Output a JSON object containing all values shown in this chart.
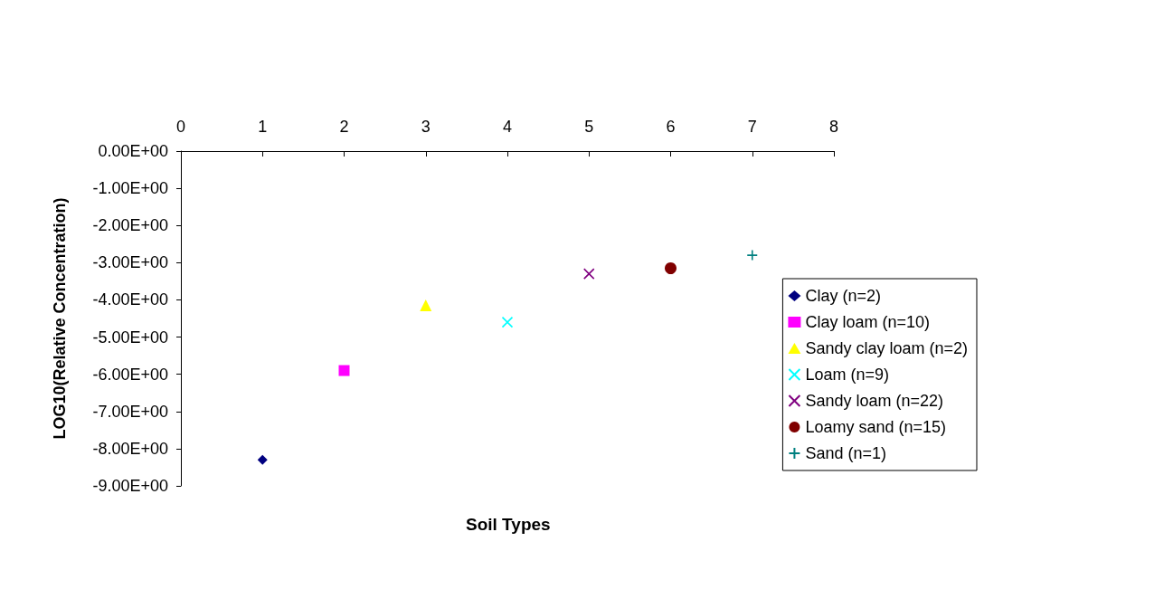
{
  "chart_data": {
    "type": "scatter",
    "xlabel": "Soil Types",
    "ylabel": "LOG10(Relative Concentration)",
    "xlim": [
      0,
      8
    ],
    "xticks": [
      0,
      1,
      2,
      3,
      4,
      5,
      6,
      7,
      8
    ],
    "ylim": [
      -9,
      0
    ],
    "yticks": [
      {
        "value": 0,
        "label": "0.00E+00"
      },
      {
        "value": -1,
        "label": "-1.00E+00"
      },
      {
        "value": -2,
        "label": "-2.00E+00"
      },
      {
        "value": -3,
        "label": "-3.00E+00"
      },
      {
        "value": -4,
        "label": "-4.00E+00"
      },
      {
        "value": -5,
        "label": "-5.00E+00"
      },
      {
        "value": -6,
        "label": "-6.00E+00"
      },
      {
        "value": -7,
        "label": "-7.00E+00"
      },
      {
        "value": -8,
        "label": "-8.00E+00"
      },
      {
        "value": -9,
        "label": "-9.00E+00"
      }
    ],
    "grid": false,
    "legend": "right",
    "series": [
      {
        "name": "Clay (n=2)",
        "color": "#000080",
        "marker": "diamond",
        "x": [
          1
        ],
        "values": [
          -8.3
        ]
      },
      {
        "name": "Clay loam (n=10)",
        "color": "#ff00ff",
        "marker": "square",
        "x": [
          2
        ],
        "values": [
          -5.9
        ]
      },
      {
        "name": "Sandy clay loam (n=2)",
        "color": "#ffff00",
        "marker": "triangle",
        "x": [
          3
        ],
        "values": [
          -4.15
        ]
      },
      {
        "name": "Loam (n=9)",
        "color": "#00ffff",
        "marker": "cross",
        "x": [
          4
        ],
        "values": [
          -4.6
        ]
      },
      {
        "name": "Sandy loam (n=22)",
        "color": "#800080",
        "marker": "cross",
        "x": [
          5
        ],
        "values": [
          -3.3
        ]
      },
      {
        "name": "Loamy sand (n=15)",
        "color": "#800000",
        "marker": "circle",
        "x": [
          6
        ],
        "values": [
          -3.15
        ]
      },
      {
        "name": "Sand (n=1)",
        "color": "#008080",
        "marker": "plus",
        "x": [
          7
        ],
        "values": [
          -2.8
        ]
      }
    ]
  }
}
